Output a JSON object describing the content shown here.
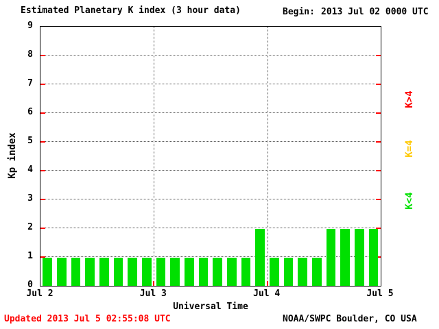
{
  "title": "Estimated Planetary K index (3 hour data)",
  "begin": {
    "label": "Begin:",
    "value": "2013 Jul 02 0000 UTC"
  },
  "axes": {
    "y_label": "Kp index",
    "x_label": "Universal Time",
    "tick_color": "#ff0000",
    "grid_color": "#555555"
  },
  "legend": {
    "position": "right",
    "items": [
      {
        "label": "K>4",
        "color": "#ff0000"
      },
      {
        "label": "K=4",
        "color": "#ffc800"
      },
      {
        "label": "K<4",
        "color": "#00e000"
      }
    ]
  },
  "footer": {
    "updated": "Updated 2013 Jul 5 02:55:08 UTC",
    "source": "NOAA/SWPC Boulder, CO USA"
  },
  "chart_data": {
    "type": "bar",
    "title": "Estimated Planetary K index (3 hour data)",
    "begin": "2013 Jul 02 0000 UTC",
    "xlabel": "Universal Time",
    "ylabel": "Kp index",
    "ylim": [
      0,
      9
    ],
    "yticks": [
      0,
      1,
      2,
      3,
      4,
      5,
      6,
      7,
      8,
      9
    ],
    "x_day_ticks": [
      "Jul 2",
      "Jul 3",
      "Jul 4",
      "Jul 5"
    ],
    "interval_hours": 3,
    "grid": "dotted",
    "legend_position": "right",
    "bar_colors": {
      "lt4": "#00e000",
      "eq4": "#ffc800",
      "gt4": "#ff0000"
    },
    "values": [
      1,
      1,
      1,
      1,
      1,
      1,
      1,
      1,
      1,
      1,
      1,
      1,
      1,
      1,
      1,
      2,
      1,
      1,
      1,
      1,
      2,
      2,
      2,
      2
    ]
  }
}
